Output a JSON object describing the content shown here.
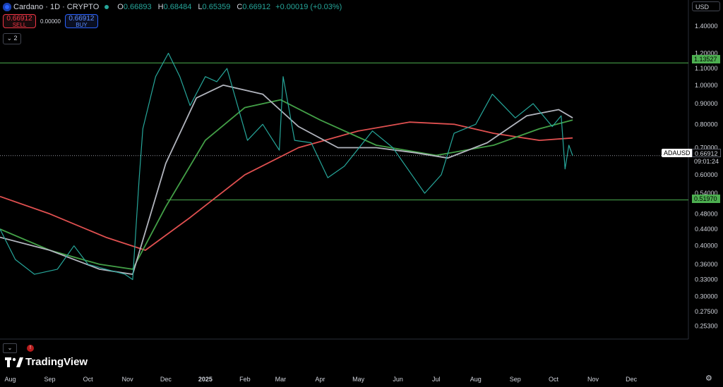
{
  "header": {
    "symbol_title": "Cardano · 1D · CRYPTO",
    "open_label": "O",
    "open": "0.66893",
    "high_label": "H",
    "high": "0.68484",
    "low_label": "L",
    "low": "0.65359",
    "close_label": "C",
    "close": "0.66912",
    "change": "+0.00019 (+0.03%)"
  },
  "trade": {
    "sell_price": "0.66912",
    "sell_label": "SELL",
    "spread": "0.00000",
    "buy_price": "0.66912",
    "buy_label": "BUY"
  },
  "indicators_toggle": "2",
  "currency": "USD",
  "price_labels": {
    "symbol": "ADAUSD",
    "last": "0.66912",
    "countdown": "09:01:24",
    "upper_line": "1.13527",
    "lower_line": "0.51970"
  },
  "brand": "TradingView",
  "colors": {
    "up": "#26a69a",
    "ma_red": "#e05050",
    "ma_green": "#43a047",
    "ma_gray": "#b2b5be",
    "hline": "#4caf50",
    "sell": "#f23645",
    "buy": "#2962ff"
  },
  "chart_data": {
    "type": "line",
    "y_scale": "log",
    "ylim": [
      0.235,
      1.5
    ],
    "y_ticks": [
      "1.40000",
      "1.20000",
      "1.10000",
      "1.00000",
      "0.90000",
      "0.80000",
      "0.70000",
      "0.60000",
      "0.54000",
      "0.48000",
      "0.44000",
      "0.40000",
      "0.36000",
      "0.33000",
      "0.30000",
      "0.27500",
      "0.25300"
    ],
    "x_ticks": [
      "Aug",
      "Sep",
      "Oct",
      "Nov",
      "Dec",
      "2025",
      "Feb",
      "Mar",
      "Apr",
      "May",
      "Jun",
      "Jul",
      "Aug",
      "Sep",
      "Oct",
      "Nov",
      "Dec"
    ],
    "x_ticks_bold": [
      "2025"
    ],
    "grid": false,
    "horizontal_lines": [
      1.13527,
      0.5197
    ],
    "last_price": 0.66912,
    "series": [
      {
        "role": "price",
        "x": [
          "2024-07-24",
          "2024-08-05",
          "2024-08-20",
          "2024-09-07",
          "2024-09-20",
          "2024-10-01",
          "2024-10-15",
          "2024-10-30",
          "2024-11-05",
          "2024-11-10",
          "2024-11-13",
          "2024-11-23",
          "2024-12-03",
          "2024-12-12",
          "2024-12-20",
          "2025-01-01",
          "2025-01-10",
          "2025-01-18",
          "2025-02-03",
          "2025-02-15",
          "2025-02-28",
          "2025-03-03",
          "2025-03-12",
          "2025-03-25",
          "2025-04-07",
          "2025-04-20",
          "2025-05-12",
          "2025-05-28",
          "2025-06-22",
          "2025-07-05",
          "2025-07-15",
          "2025-08-01",
          "2025-08-14",
          "2025-09-01",
          "2025-09-15",
          "2025-09-30",
          "2025-10-07",
          "2025-10-10",
          "2025-10-13",
          "2025-10-16"
        ],
        "y": [
          0.44,
          0.37,
          0.34,
          0.35,
          0.4,
          0.36,
          0.35,
          0.34,
          0.33,
          0.58,
          0.78,
          1.05,
          1.2,
          1.05,
          0.89,
          1.05,
          1.02,
          1.1,
          0.73,
          0.8,
          0.69,
          1.05,
          0.73,
          0.72,
          0.59,
          0.63,
          0.77,
          0.7,
          0.54,
          0.6,
          0.76,
          0.8,
          0.95,
          0.83,
          0.9,
          0.79,
          0.84,
          0.62,
          0.71,
          0.669
        ]
      },
      {
        "role": "ma-red",
        "x": [
          "2024-07-24",
          "2024-09-01",
          "2024-10-15",
          "2024-11-15",
          "2024-12-20",
          "2025-02-01",
          "2025-03-15",
          "2025-05-01",
          "2025-06-10",
          "2025-07-15",
          "2025-08-15",
          "2025-09-20",
          "2025-10-16"
        ],
        "y": [
          0.53,
          0.48,
          0.42,
          0.39,
          0.47,
          0.6,
          0.7,
          0.77,
          0.81,
          0.8,
          0.76,
          0.73,
          0.74
        ]
      },
      {
        "role": "ma-green",
        "x": [
          "2024-07-24",
          "2024-09-01",
          "2024-10-10",
          "2024-11-05",
          "2024-12-01",
          "2025-01-01",
          "2025-02-01",
          "2025-03-01",
          "2025-04-01",
          "2025-05-15",
          "2025-07-01",
          "2025-08-15",
          "2025-09-20",
          "2025-10-16"
        ],
        "y": [
          0.44,
          0.39,
          0.36,
          0.35,
          0.5,
          0.73,
          0.88,
          0.92,
          0.82,
          0.71,
          0.67,
          0.71,
          0.78,
          0.82
        ]
      },
      {
        "role": "ma-gray",
        "x": [
          "2024-07-24",
          "2024-09-01",
          "2024-10-10",
          "2024-11-05",
          "2024-12-01",
          "2024-12-25",
          "2025-01-15",
          "2025-02-15",
          "2025-03-15",
          "2025-04-15",
          "2025-05-15",
          "2025-06-15",
          "2025-07-10",
          "2025-08-10",
          "2025-09-10",
          "2025-10-05",
          "2025-10-16"
        ],
        "y": [
          0.42,
          0.39,
          0.35,
          0.34,
          0.64,
          0.93,
          1.0,
          0.95,
          0.79,
          0.7,
          0.7,
          0.68,
          0.66,
          0.72,
          0.84,
          0.87,
          0.83
        ]
      }
    ]
  }
}
